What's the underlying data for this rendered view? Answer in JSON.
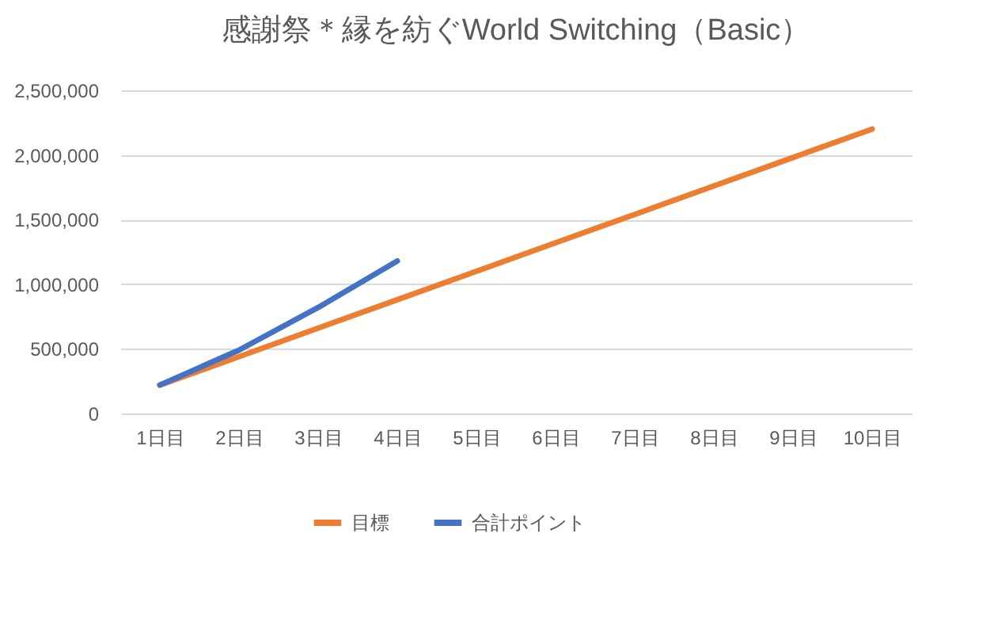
{
  "chart_data": {
    "type": "line",
    "title": "感謝祭＊縁を紡ぐWorld Switching（Basic）",
    "categories": [
      "1日目",
      "2日目",
      "3日目",
      "4日目",
      "5日目",
      "6日目",
      "7日目",
      "8日目",
      "9日目",
      "10日目"
    ],
    "series": [
      {
        "name": "目標",
        "color": "#ed7d31",
        "values": [
          220000,
          440000,
          660000,
          880000,
          1100000,
          1320000,
          1540000,
          1760000,
          1980000,
          2200000
        ]
      },
      {
        "name": "合計ポイント",
        "color": "#4472c4",
        "values": [
          220000,
          490000,
          820000,
          1180000,
          null,
          null,
          null,
          null,
          null,
          null
        ]
      }
    ],
    "ylim": [
      0,
      2500000
    ],
    "yticks": [
      0,
      {
        "value": 500000,
        "label": "500,000"
      },
      {
        "value": 1000000,
        "label": "1,000,000"
      },
      {
        "value": 1500000,
        "label": "1,500,000"
      },
      {
        "value": 2000000,
        "label": "2,000,000"
      },
      {
        "value": 2500000,
        "label": "2,500,000"
      }
    ],
    "grid": "y",
    "legend": "bottom",
    "marker": "none",
    "line_style": "solid"
  }
}
